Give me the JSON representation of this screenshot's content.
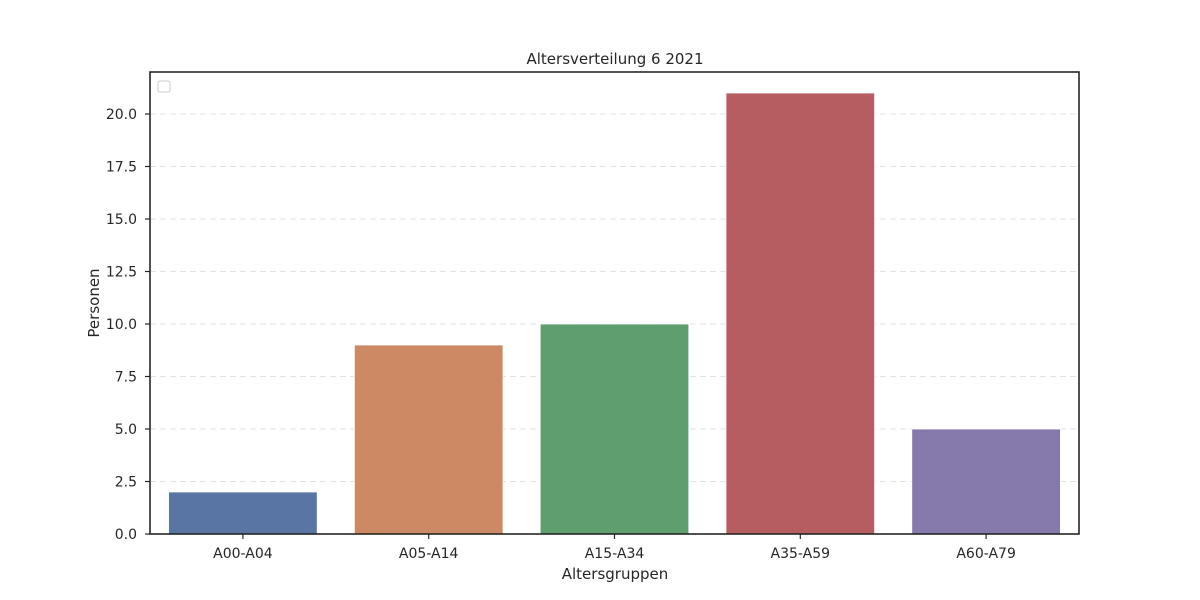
{
  "chart_data": {
    "type": "bar",
    "title": "Altersverteilung 6 2021",
    "xlabel": "Altersgruppen",
    "ylabel": "Personen",
    "categories": [
      "A00-A04",
      "A05-A14",
      "A15-A34",
      "A35-A59",
      "A60-A79"
    ],
    "values": [
      2,
      9,
      10,
      21,
      5
    ],
    "colors": [
      "#5875a4",
      "#cc8963",
      "#5f9e6e",
      "#b55d60",
      "#857aab"
    ],
    "ylim": [
      0,
      22
    ],
    "yticks": [
      0,
      2.5,
      5,
      7.5,
      10,
      12.5,
      15,
      17.5,
      20
    ],
    "ytick_labels": [
      "0.0",
      "2.5",
      "5.0",
      "7.5",
      "10.0",
      "12.5",
      "15.0",
      "17.5",
      "20.0"
    ],
    "grid": true,
    "legend": {
      "visible": true,
      "placement": "top-left",
      "entries": []
    }
  }
}
